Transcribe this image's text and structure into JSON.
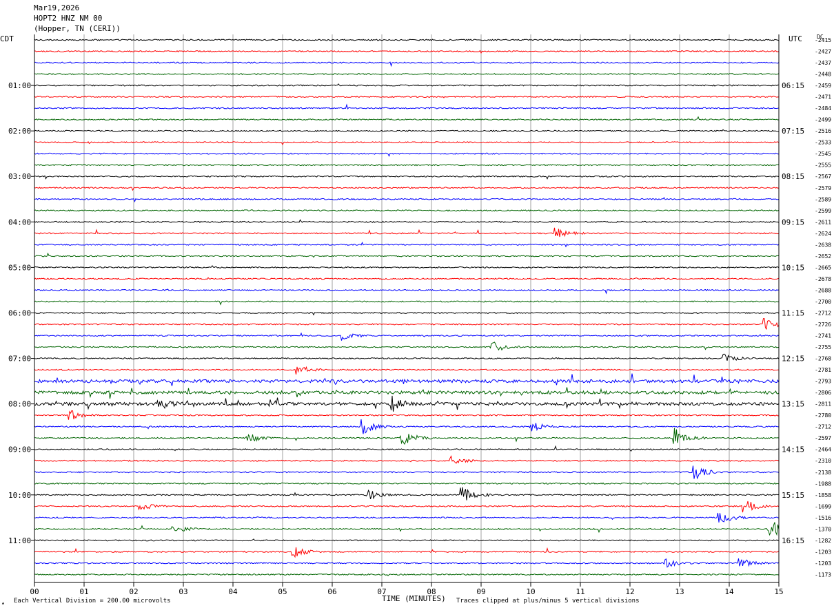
{
  "header": {
    "date": "Mar19,2026",
    "station": "HOPT2 HNZ NM 00",
    "location": "(Hopper, TN (CERI))"
  },
  "footer": {
    "scale_note": "Each Vertical Division = 200.00 microvolts",
    "clip_note": "Traces clipped at plus/minus 5 vertical divisions",
    "scale_icon": "scale-marker-icon"
  },
  "colors": {
    "trace_cycle": [
      "#000000",
      "#ff0000",
      "#0000ff",
      "#006400"
    ],
    "gridline": "#a0a0a0",
    "frame": "#000000"
  },
  "chart_data": {
    "type": "line",
    "subtype": "helicorder",
    "xlabel": "TIME (MINUTES)",
    "xlim": [
      0,
      15
    ],
    "x_ticks": [
      "00",
      "01",
      "02",
      "03",
      "04",
      "05",
      "06",
      "07",
      "08",
      "09",
      "10",
      "11",
      "12",
      "13",
      "14",
      "15"
    ],
    "left_axis_label": "CDT",
    "right_axis_label": "UTC",
    "dc_label": "DC",
    "left_hour_labels": [
      "01:00",
      "02:00",
      "03:00",
      "04:00",
      "05:00",
      "06:00",
      "07:00",
      "08:00",
      "09:00",
      "10:00",
      "11:00"
    ],
    "right_hour_labels": [
      "06:15",
      "07:15",
      "08:15",
      "09:15",
      "10:15",
      "11:15",
      "12:15",
      "13:15",
      "14:15",
      "15:15",
      "16:15"
    ],
    "hour_label_lines": [
      4,
      8,
      12,
      16,
      20,
      24,
      28,
      32,
      36,
      40,
      44
    ],
    "trace_count": 48,
    "trace_interval_minutes": 15,
    "dc_offsets": [
      "-2415",
      "-2427",
      "-2437",
      "-2448",
      "-2459",
      "-2471",
      "-2484",
      "-2499",
      "-2516",
      "-2533",
      "-2545",
      "-2555",
      "-2567",
      "-2579",
      "-2589",
      "-2599",
      "-2611",
      "-2624",
      "-2638",
      "-2652",
      "-2665",
      "-2678",
      "-2688",
      "-2700",
      "-2712",
      "-2726",
      "-2741",
      "-2755",
      "-2768",
      "-2781",
      "-2793",
      "-2806",
      "-2811",
      "-2780",
      "-2712",
      "-2597",
      "-2464",
      "-2310",
      "-2138",
      "-1988",
      "-1858",
      "-1699",
      "-1516",
      "-1370",
      "-1282",
      "-1203",
      "-1203",
      "-1173"
    ],
    "events": [
      {
        "line": 17,
        "minute": 10.5,
        "amp": 8
      },
      {
        "line": 25,
        "minute": 14.7,
        "amp": 11
      },
      {
        "line": 26,
        "minute": 6.2,
        "amp": 7
      },
      {
        "line": 27,
        "minute": 9.2,
        "amp": 10
      },
      {
        "line": 28,
        "minute": 13.9,
        "amp": 6
      },
      {
        "line": 29,
        "minute": 5.3,
        "amp": 7
      },
      {
        "line": 32,
        "minute": 7.2,
        "amp": 11
      },
      {
        "line": 32,
        "minute": 2.5,
        "amp": 9
      },
      {
        "line": 33,
        "minute": 0.7,
        "amp": 8
      },
      {
        "line": 34,
        "minute": 6.6,
        "amp": 12
      },
      {
        "line": 34,
        "minute": 10.0,
        "amp": 8
      },
      {
        "line": 35,
        "minute": 7.4,
        "amp": 13
      },
      {
        "line": 35,
        "minute": 4.3,
        "amp": 7
      },
      {
        "line": 35,
        "minute": 12.9,
        "amp": 14
      },
      {
        "line": 37,
        "minute": 8.4,
        "amp": 6
      },
      {
        "line": 38,
        "minute": 13.3,
        "amp": 11
      },
      {
        "line": 40,
        "minute": 8.6,
        "amp": 16
      },
      {
        "line": 40,
        "minute": 6.7,
        "amp": 8
      },
      {
        "line": 41,
        "minute": 14.3,
        "amp": 12
      },
      {
        "line": 41,
        "minute": 2.1,
        "amp": 7
      },
      {
        "line": 42,
        "minute": 13.8,
        "amp": 10
      },
      {
        "line": 43,
        "minute": 14.8,
        "amp": 20
      },
      {
        "line": 43,
        "minute": 2.8,
        "amp": 6
      },
      {
        "line": 45,
        "minute": 5.2,
        "amp": 9
      },
      {
        "line": 46,
        "minute": 14.2,
        "amp": 9
      },
      {
        "line": 46,
        "minute": 12.7,
        "amp": 7
      }
    ],
    "noisy_lines": [
      30,
      31,
      32
    ]
  }
}
